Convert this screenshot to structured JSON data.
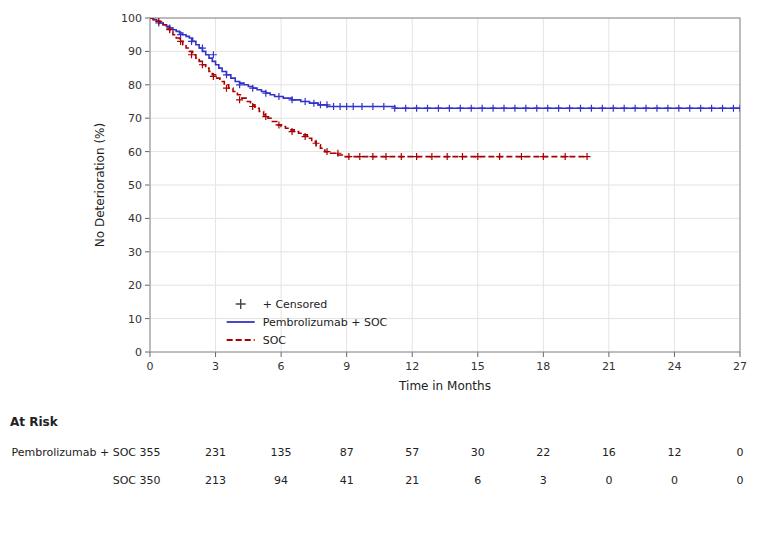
{
  "chart_data": {
    "type": "step",
    "xlabel": "Time in Months",
    "ylabel": "No Deterioration (%)",
    "xlim": [
      0,
      27
    ],
    "ylim": [
      0,
      100
    ],
    "xticks": [
      0,
      3,
      6,
      9,
      12,
      15,
      18,
      21,
      24,
      27
    ],
    "yticks": [
      0,
      10,
      20,
      30,
      40,
      50,
      60,
      70,
      80,
      90,
      100
    ],
    "grid": true,
    "legend": "lower left",
    "censor_legend": {
      "name": "+ Censored",
      "color": "#444444",
      "marker": "+"
    },
    "series": [
      {
        "name": "Pembrolizumab + SOC",
        "color": "#3333cc",
        "line_style": "solid",
        "x": [
          0,
          0.15,
          0.3,
          0.45,
          0.6,
          0.75,
          0.9,
          1.05,
          1.2,
          1.35,
          1.5,
          1.65,
          1.8,
          1.95,
          2.1,
          2.25,
          2.4,
          2.55,
          2.7,
          2.85,
          3.0,
          3.15,
          3.3,
          3.5,
          3.7,
          3.9,
          4.1,
          4.3,
          4.5,
          4.7,
          4.9,
          5.1,
          5.3,
          5.5,
          5.7,
          5.9,
          6.1,
          6.3,
          6.5,
          6.7,
          6.9,
          7.1,
          7.3,
          7.5,
          7.7,
          7.9,
          8.1,
          8.4,
          8.7,
          9.2,
          9.8,
          10.5,
          11.2,
          12.0,
          13.0,
          14.0,
          15.0,
          16.5,
          18.0,
          20.0,
          22.0,
          24.0,
          25.0,
          26.0,
          27.0
        ],
        "values": [
          100,
          99.5,
          99,
          98.5,
          98,
          97.5,
          97,
          96.5,
          96,
          95.5,
          95,
          94.5,
          94,
          93,
          92,
          91,
          90,
          89,
          88,
          87,
          86,
          85,
          84,
          83,
          82,
          81,
          80.5,
          80,
          79.5,
          79,
          78.5,
          78,
          77.5,
          77,
          76.5,
          76.5,
          76,
          76,
          75.5,
          75.5,
          75,
          75,
          74.5,
          74.5,
          74,
          74,
          73.5,
          73.5,
          73.5,
          73.5,
          73.5,
          73.5,
          73,
          73,
          73,
          73,
          73,
          73,
          73,
          73,
          73,
          73,
          73,
          73,
          73
        ],
        "censor_x": [
          0.4,
          0.9,
          1.4,
          1.9,
          2.4,
          2.9,
          3.5,
          4.1,
          4.7,
          5.3,
          5.9,
          6.5,
          7.1,
          7.5,
          7.8,
          8.1,
          8.4,
          8.7,
          9.0,
          9.3,
          9.7,
          10.2,
          10.7,
          11.2,
          11.7,
          12.2,
          12.7,
          13.2,
          13.7,
          14.2,
          14.7,
          15.2,
          15.7,
          16.2,
          16.7,
          17.2,
          17.7,
          18.2,
          18.7,
          19.2,
          19.7,
          20.2,
          20.7,
          21.2,
          21.7,
          22.2,
          22.7,
          23.2,
          23.7,
          24.2,
          24.7,
          25.2,
          25.7,
          26.2,
          26.7,
          27.0
        ],
        "censor_values": [
          98.5,
          97,
          95,
          93,
          91,
          89,
          83,
          80,
          79,
          77.5,
          76.5,
          75.5,
          75,
          74.5,
          74,
          74,
          73.5,
          73.5,
          73.5,
          73.5,
          73.5,
          73.5,
          73.5,
          73,
          73,
          73,
          73,
          73,
          73,
          73,
          73,
          73,
          73,
          73,
          73,
          73,
          73,
          73,
          73,
          73,
          73,
          73,
          73,
          73,
          73,
          73,
          73,
          73,
          73,
          73,
          73,
          73,
          73,
          73,
          73,
          73
        ]
      },
      {
        "name": "SOC",
        "color": "#aa0000",
        "line_style": "dashed",
        "x": [
          0,
          0.15,
          0.3,
          0.45,
          0.6,
          0.75,
          0.9,
          1.05,
          1.2,
          1.35,
          1.5,
          1.65,
          1.8,
          1.95,
          2.1,
          2.25,
          2.4,
          2.55,
          2.7,
          2.85,
          3.0,
          3.2,
          3.4,
          3.6,
          3.8,
          4.0,
          4.2,
          4.4,
          4.6,
          4.8,
          5.0,
          5.2,
          5.4,
          5.6,
          5.8,
          6.0,
          6.2,
          6.4,
          6.6,
          6.8,
          7.0,
          7.2,
          7.4,
          7.6,
          7.8,
          8.0,
          8.2,
          8.4,
          8.6,
          8.8,
          9.5,
          10.5,
          12.0,
          14.0,
          16.0,
          18.0,
          20.0
        ],
        "values": [
          100,
          99.5,
          99,
          98.5,
          98,
          97,
          96,
          95,
          94,
          93,
          92,
          91,
          90,
          89,
          88,
          87,
          86,
          85,
          84,
          83,
          82,
          81,
          80,
          79,
          78,
          77,
          76,
          75,
          74,
          73,
          72,
          71,
          70,
          69,
          68,
          67.5,
          67,
          66.5,
          66,
          65.5,
          65,
          64,
          63,
          62,
          61,
          60,
          59.5,
          59.5,
          59,
          58.5,
          58.5,
          58.5,
          58.5,
          58.5,
          58.5,
          58.5,
          58.5
        ],
        "censor_x": [
          0.4,
          0.9,
          1.4,
          1.9,
          2.4,
          2.9,
          3.5,
          4.1,
          4.7,
          5.3,
          5.9,
          6.5,
          7.1,
          7.6,
          8.1,
          8.6,
          9.1,
          9.6,
          10.2,
          10.8,
          11.5,
          12.2,
          12.9,
          13.6,
          14.3,
          15.0,
          16.0,
          17.0,
          18.0,
          19.0,
          20.0
        ],
        "censor_values": [
          99,
          96.5,
          93,
          89,
          86,
          82.5,
          79,
          75.5,
          73.5,
          70.5,
          68,
          66,
          64.5,
          62.5,
          60,
          59.5,
          58.5,
          58.5,
          58.5,
          58.5,
          58.5,
          58.5,
          58.5,
          58.5,
          58.5,
          58.5,
          58.5,
          58.5,
          58.5,
          58.5,
          58.5
        ]
      }
    ],
    "at_risk": {
      "title": "At Risk",
      "times": [
        0,
        3,
        6,
        9,
        12,
        15,
        18,
        21,
        24,
        27
      ],
      "rows": [
        {
          "name": "Pembrolizumab + SOC",
          "values": [
            355,
            231,
            135,
            87,
            57,
            30,
            22,
            16,
            12,
            0
          ]
        },
        {
          "name": "SOC",
          "values": [
            350,
            213,
            94,
            41,
            21,
            6,
            3,
            0,
            0,
            0
          ]
        }
      ]
    }
  }
}
